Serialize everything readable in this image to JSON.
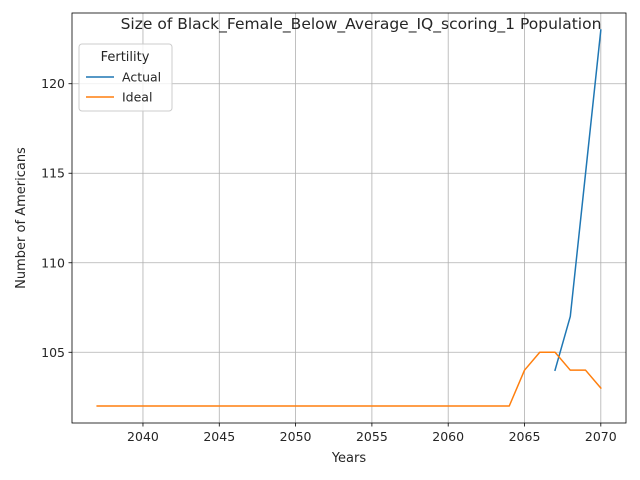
{
  "chart_data": {
    "type": "line",
    "title": "Size of Black_Female_Below_Average_IQ_scoring_1 Population",
    "xlabel": "Years",
    "ylabel": "Number of Americans",
    "xlim": [
      2035.35,
      2071.65
    ],
    "ylim": [
      101.05,
      123.95
    ],
    "xticks": [
      2040,
      2045,
      2050,
      2055,
      2060,
      2065,
      2070
    ],
    "yticks": [
      105,
      110,
      115,
      120
    ],
    "grid": true,
    "legend": {
      "title": "Fertility",
      "placement": "top-left"
    },
    "series": [
      {
        "name": "Actual",
        "color": "#1f77b4",
        "x": [
          2067,
          2068,
          2069,
          2070
        ],
        "y": [
          104,
          107,
          115,
          123
        ]
      },
      {
        "name": "Ideal",
        "color": "#ff7f0e",
        "x": [
          2037,
          2038,
          2039,
          2040,
          2041,
          2042,
          2043,
          2044,
          2045,
          2046,
          2047,
          2048,
          2049,
          2050,
          2051,
          2052,
          2053,
          2054,
          2055,
          2056,
          2057,
          2058,
          2059,
          2060,
          2061,
          2062,
          2063,
          2064,
          2065,
          2066,
          2067,
          2068,
          2069,
          2070
        ],
        "y": [
          102,
          102,
          102,
          102,
          102,
          102,
          102,
          102,
          102,
          102,
          102,
          102,
          102,
          102,
          102,
          102,
          102,
          102,
          102,
          102,
          102,
          102,
          102,
          102,
          102,
          102,
          102,
          102,
          104,
          105,
          105,
          104,
          104,
          103
        ]
      }
    ]
  }
}
